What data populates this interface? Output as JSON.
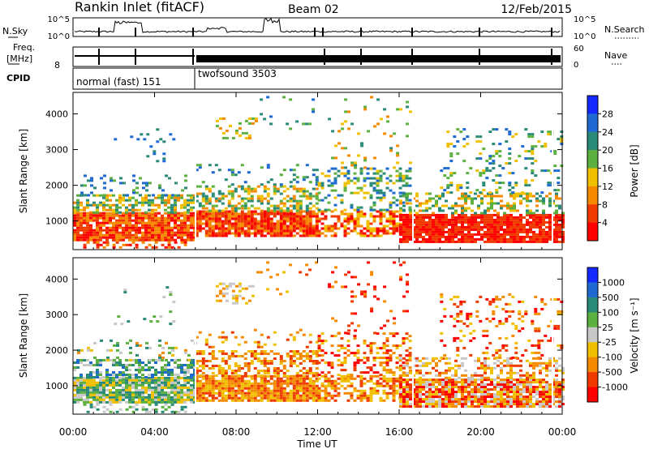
{
  "header": {
    "title": "Rankin Inlet (fitACF)",
    "beam": "Beam 02",
    "date": "12/Feb/2015"
  },
  "params": {
    "nsky_label": "N.Sky",
    "nsearch_label": "N.Search",
    "freq_label": "Freq.",
    "freq_unit": "[MHz]",
    "nave_label": "Nave",
    "cpid_label": "CPID",
    "nsky_ticks": [
      "10^5",
      "10^0"
    ],
    "nsearch_ticks": [
      "10^5",
      "10^0"
    ],
    "freq_ticks": [
      "",
      "8"
    ],
    "nave_ticks": [
      "60",
      "0"
    ],
    "cpid_segments": [
      {
        "label": "normal (fast) 151",
        "start_hour": 0,
        "end_hour": 6
      },
      {
        "label": "twofsound 3503",
        "start_hour": 6,
        "end_hour": 24
      }
    ]
  },
  "chart_data": [
    {
      "type": "heatmap",
      "name": "power",
      "xlabel": "",
      "ylabel": "Slant Range [km]",
      "xlim": [
        0,
        24
      ],
      "ylim": [
        200,
        4600
      ],
      "yticks": [
        1000,
        2000,
        3000,
        4000
      ],
      "colorbar_label": "Power [dB]",
      "colorbar_ticks": [
        "4",
        "8",
        "12",
        "16",
        "20",
        "24",
        "28"
      ],
      "colorbar_colors": [
        "#1428ff",
        "#1e6ad2",
        "#2a8a78",
        "#5cb040",
        "#f0c000",
        "#f58a00",
        "#f03a00",
        "#ff0000"
      ]
    },
    {
      "type": "heatmap",
      "name": "velocity",
      "xlabel": "Time UT",
      "ylabel": "Slant Range [km]",
      "xlim": [
        0,
        24
      ],
      "ylim": [
        200,
        4600
      ],
      "xticks": [
        "00:00",
        "04:00",
        "08:00",
        "12:00",
        "16:00",
        "20:00",
        "00:00"
      ],
      "yticks": [
        1000,
        2000,
        3000,
        4000
      ],
      "colorbar_label": "Velocity [m s⁻¹]",
      "colorbar_ticks": [
        "1000",
        "500",
        "100",
        "25",
        "-25",
        "-100",
        "-500",
        "-1000"
      ],
      "colorbar_colors": [
        "#1428ff",
        "#1e6ad2",
        "#2a8a78",
        "#5cb040",
        "#c8c8c8",
        "#f0c000",
        "#f58a00",
        "#f03a00",
        "#ff0000"
      ]
    }
  ]
}
